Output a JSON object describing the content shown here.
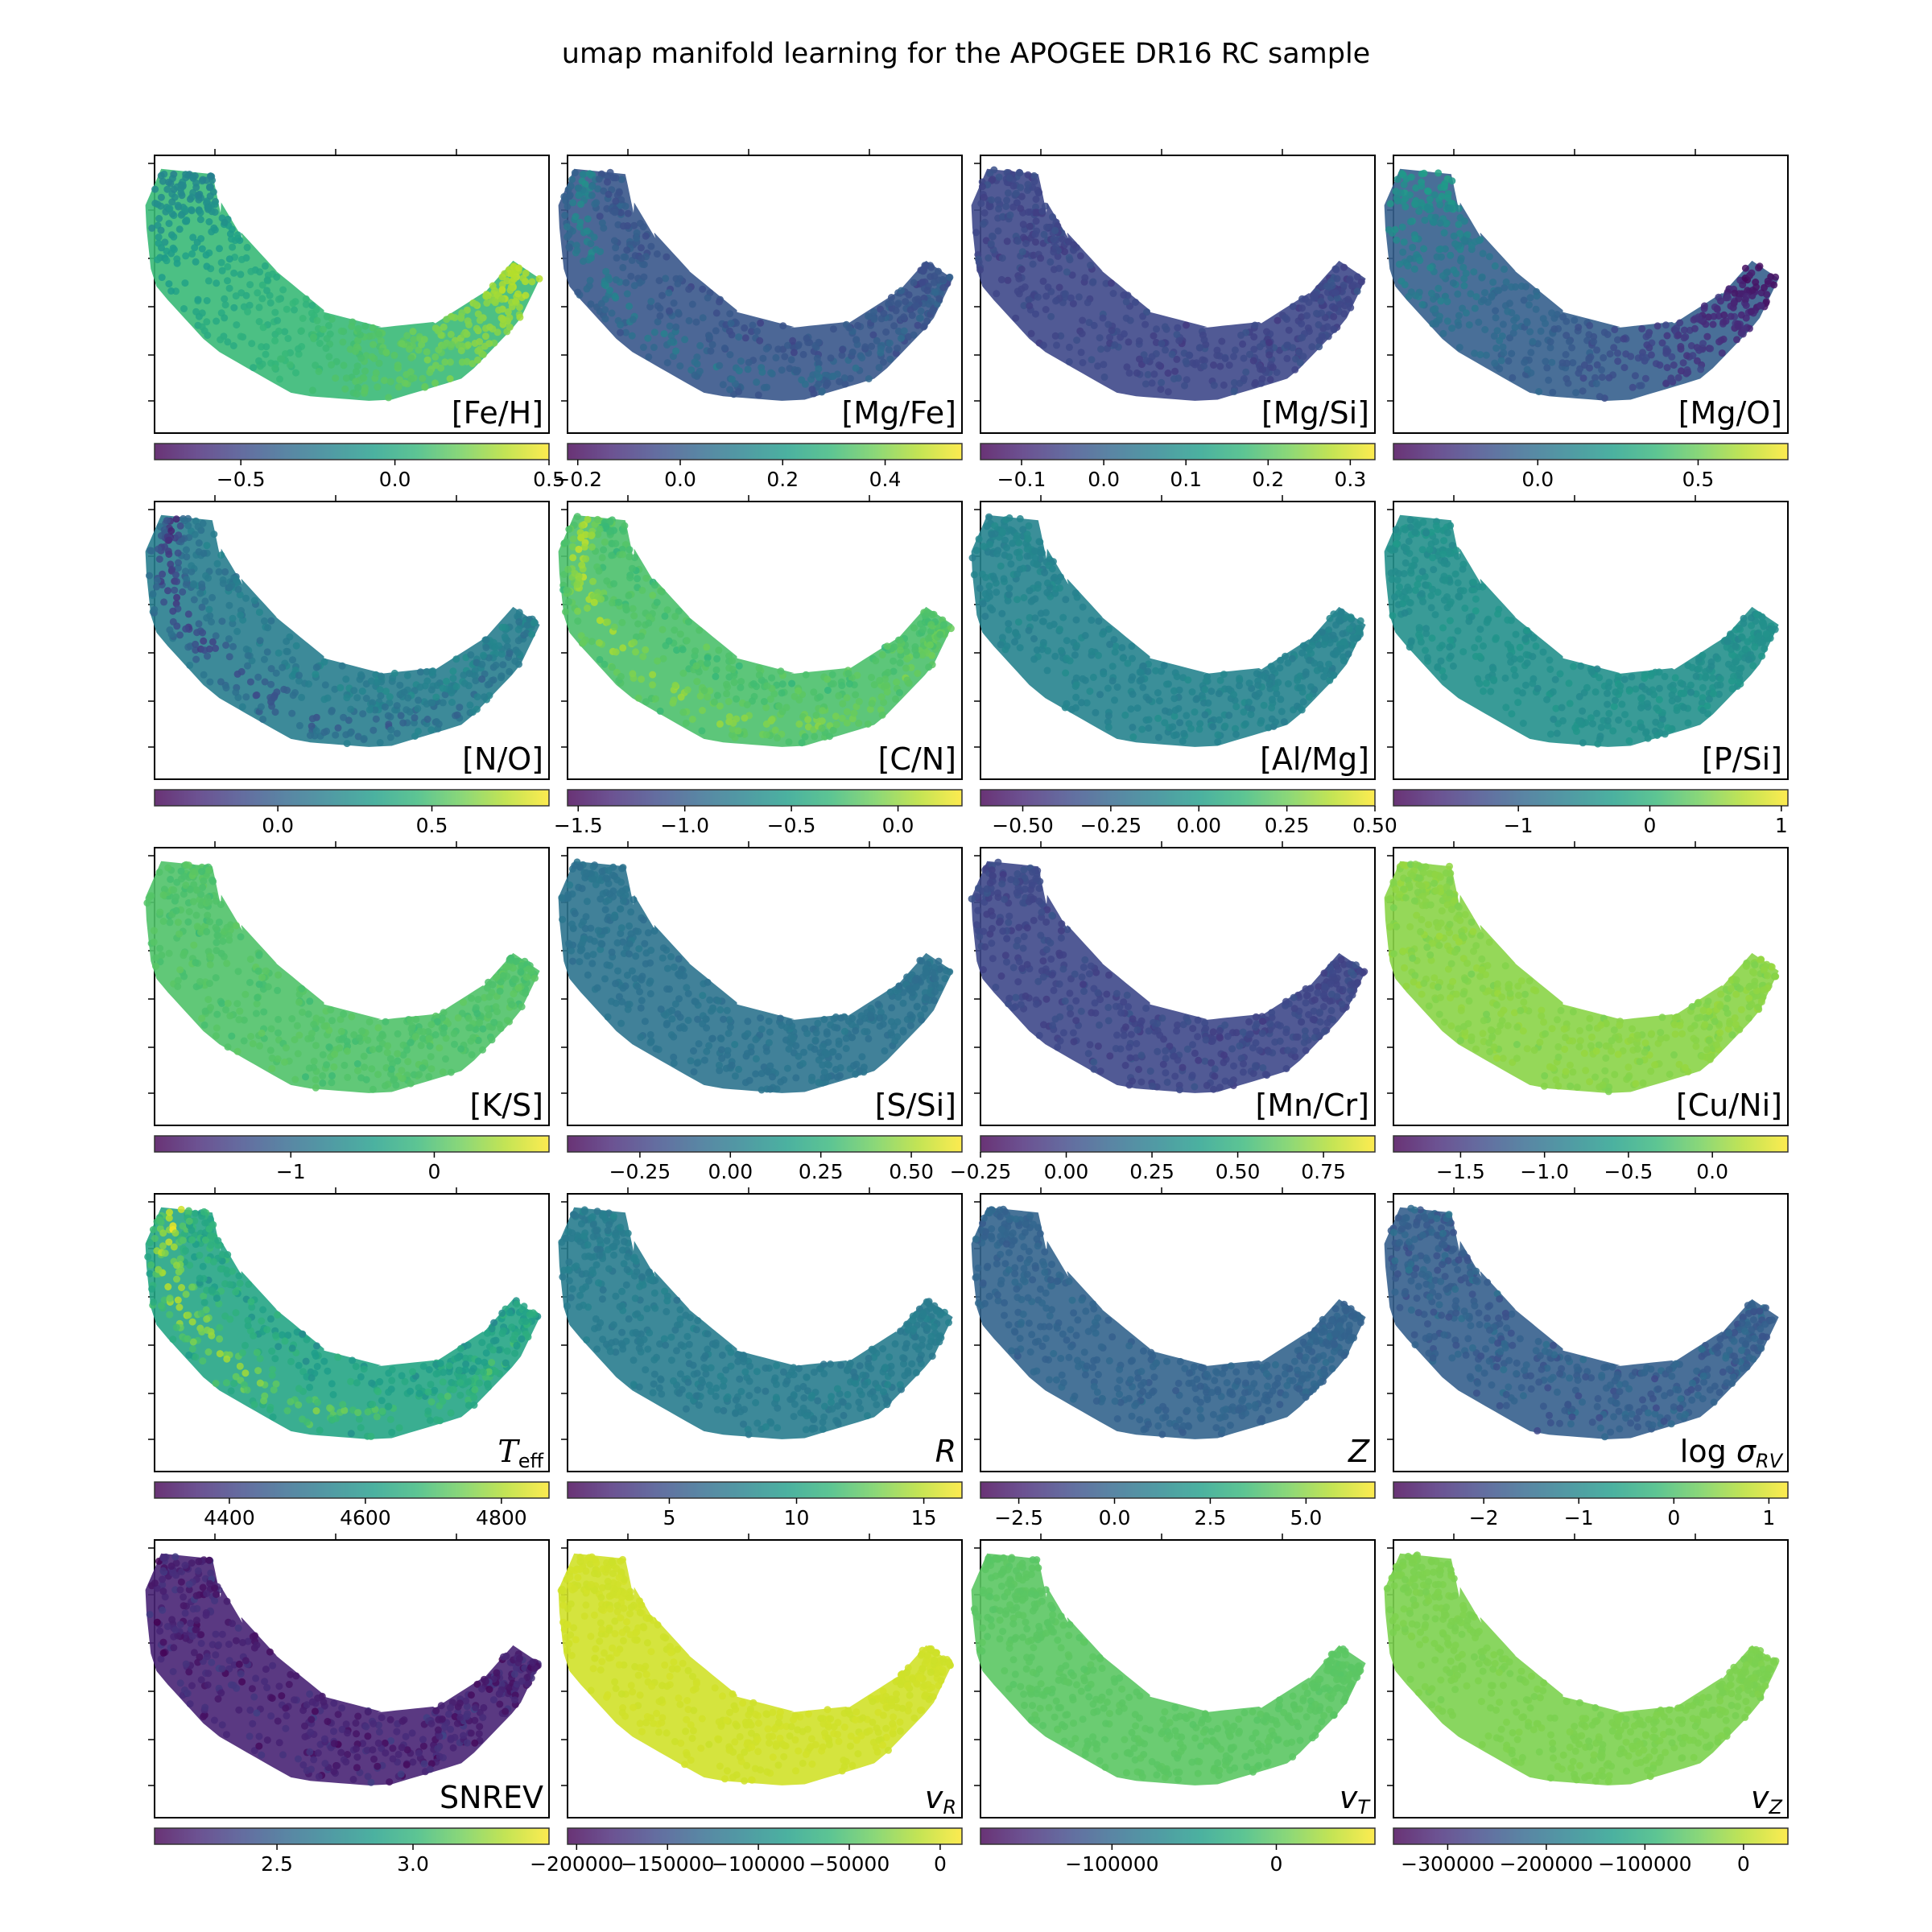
{
  "figure": {
    "title": "umap manifold learning for the APOGEE DR16 RC sample",
    "colormap": "viridis",
    "viridis_stops": [
      "#440154",
      "#482878",
      "#3e4989",
      "#31688e",
      "#26828e",
      "#1f9e89",
      "#35b779",
      "#6ece58",
      "#b5de2b",
      "#fde725"
    ]
  },
  "chart_data": [
    {
      "type": "scatter",
      "label": "[Fe/H]",
      "label_style": "plain",
      "range": [
        -0.78,
        0.5
      ],
      "ticks": [
        -0.5,
        0.0,
        0.5
      ],
      "tick_labels": [
        "−0.5",
        "0.0",
        "0.5"
      ],
      "field": "gradient",
      "c0": 0.45,
      "c1": 0.9,
      "bump": 0,
      "noise": 0.04
    },
    {
      "type": "scatter",
      "label": "[Mg/Fe]",
      "label_style": "plain",
      "range": [
        -0.22,
        0.55
      ],
      "ticks": [
        -0.2,
        0.0,
        0.2,
        0.4
      ],
      "tick_labels": [
        "−0.2",
        "0.0",
        "0.2",
        "0.4"
      ],
      "field": "band",
      "c0": 0.28,
      "c1": 0.26,
      "bump": 0.22,
      "noise": 0.08
    },
    {
      "type": "scatter",
      "label": "[Mg/Si]",
      "label_style": "plain",
      "range": [
        -0.15,
        0.33
      ],
      "ticks": [
        -0.1,
        0.0,
        0.1,
        0.2,
        0.3
      ],
      "tick_labels": [
        "−0.1",
        "0.0",
        "0.1",
        "0.2",
        "0.3"
      ],
      "field": "flat",
      "c0": 0.22,
      "c1": 0.22,
      "bump": 0,
      "noise": 0.07
    },
    {
      "type": "scatter",
      "label": "[Mg/O]",
      "label_style": "plain",
      "range": [
        -0.45,
        0.78
      ],
      "ticks": [
        0.0,
        0.5
      ],
      "tick_labels": [
        "0.0",
        "0.5"
      ],
      "field": "gradient",
      "c0": 0.55,
      "c1": 0.05,
      "bump": 0,
      "noise": 0.06
    },
    {
      "type": "scatter",
      "label": "[N/O]",
      "label_style": "plain",
      "range": [
        -0.4,
        0.88
      ],
      "ticks": [
        0.0,
        0.5
      ],
      "tick_labels": [
        "0.0",
        "0.5"
      ],
      "field": "band",
      "c0": 0.4,
      "c1": 0.45,
      "bump": -0.28,
      "noise": 0.09
    },
    {
      "type": "scatter",
      "label": "[C/N]",
      "label_style": "plain",
      "range": [
        -1.55,
        0.3
      ],
      "ticks": [
        -1.5,
        -1.0,
        -0.5,
        0.0
      ],
      "tick_labels": [
        "−1.5",
        "−1.0",
        "−0.5",
        "0.0"
      ],
      "field": "band",
      "c0": 0.7,
      "c1": 0.72,
      "bump": 0.2,
      "noise": 0.07
    },
    {
      "type": "scatter",
      "label": "[Al/Mg]",
      "label_style": "plain",
      "range": [
        -0.62,
        0.5
      ],
      "ticks": [
        -0.5,
        -0.25,
        0.0,
        0.25,
        0.5
      ],
      "tick_labels": [
        "−0.50",
        "−0.25",
        "0.00",
        "0.25",
        "0.50"
      ],
      "field": "flat",
      "c0": 0.45,
      "c1": 0.45,
      "bump": 0,
      "noise": 0.05
    },
    {
      "type": "scatter",
      "label": "[P/Si]",
      "label_style": "plain",
      "range": [
        -1.95,
        1.05
      ],
      "ticks": [
        -1,
        0,
        1
      ],
      "tick_labels": [
        "−1",
        "0",
        "1"
      ],
      "field": "flat",
      "c0": 0.5,
      "c1": 0.5,
      "bump": 0,
      "noise": 0.05
    },
    {
      "type": "scatter",
      "label": "[K/S]",
      "label_style": "plain",
      "range": [
        -1.95,
        0.8
      ],
      "ticks": [
        -1,
        0
      ],
      "tick_labels": [
        "−1",
        "0"
      ],
      "field": "flat",
      "c0": 0.72,
      "c1": 0.72,
      "bump": 0,
      "noise": 0.05
    },
    {
      "type": "scatter",
      "label": "[S/Si]",
      "label_style": "plain",
      "range": [
        -0.45,
        0.64
      ],
      "ticks": [
        -0.25,
        0.0,
        0.25,
        0.5
      ],
      "tick_labels": [
        "−0.25",
        "0.00",
        "0.25",
        "0.50"
      ],
      "field": "flat",
      "c0": 0.38,
      "c1": 0.38,
      "bump": 0,
      "noise": 0.04
    },
    {
      "type": "scatter",
      "label": "[Mn/Cr]",
      "label_style": "plain",
      "range": [
        -0.25,
        0.9
      ],
      "ticks": [
        -0.25,
        0.0,
        0.25,
        0.5,
        0.75
      ],
      "tick_labels": [
        "−0.25",
        "0.00",
        "0.25",
        "0.50",
        "0.75"
      ],
      "field": "flat",
      "c0": 0.22,
      "c1": 0.22,
      "bump": 0,
      "noise": 0.06
    },
    {
      "type": "scatter",
      "label": "[Cu/Ni]",
      "label_style": "plain",
      "range": [
        -1.9,
        0.45
      ],
      "ticks": [
        -1.5,
        -1.0,
        -0.5,
        0.0
      ],
      "tick_labels": [
        "−1.5",
        "−1.0",
        "−0.5",
        "0.0"
      ],
      "field": "flat",
      "c0": 0.82,
      "c1": 0.82,
      "bump": 0,
      "noise": 0.04
    },
    {
      "type": "scatter",
      "label": "Teff",
      "label_style": "teff",
      "range": [
        4290,
        4870
      ],
      "ticks": [
        4400,
        4600,
        4800
      ],
      "tick_labels": [
        "4400",
        "4600",
        "4800"
      ],
      "field": "band",
      "c0": 0.62,
      "c1": 0.55,
      "bump": 0.33,
      "noise": 0.14
    },
    {
      "type": "scatter",
      "label": "R",
      "label_style": "italic",
      "range": [
        1.0,
        16.5
      ],
      "ticks": [
        5,
        10,
        15
      ],
      "tick_labels": [
        "5",
        "10",
        "15"
      ],
      "field": "flat",
      "c0": 0.42,
      "c1": 0.42,
      "bump": 0,
      "noise": 0.05
    },
    {
      "type": "scatter",
      "label": "Z",
      "label_style": "italic",
      "range": [
        -3.5,
        6.8
      ],
      "ticks": [
        -2.5,
        0.0,
        2.5,
        5.0
      ],
      "tick_labels": [
        "−2.5",
        "0.0",
        "2.5",
        "5.0"
      ],
      "field": "flat",
      "c0": 0.32,
      "c1": 0.32,
      "bump": 0,
      "noise": 0.04
    },
    {
      "type": "scatter",
      "label": "log σRV",
      "label_style": "logsigma",
      "range": [
        -2.95,
        1.2
      ],
      "ticks": [
        -2,
        -1,
        0,
        1
      ],
      "tick_labels": [
        "−2",
        "−1",
        "0",
        "1"
      ],
      "field": "flat",
      "c0": 0.3,
      "c1": 0.3,
      "bump": 0,
      "noise": 0.1
    },
    {
      "type": "scatter",
      "label": "SNREV",
      "label_style": "plain",
      "range": [
        2.05,
        3.5
      ],
      "ticks": [
        2.5,
        3.0
      ],
      "tick_labels": [
        "2.5",
        "3.0"
      ],
      "field": "flat",
      "c0": 0.1,
      "c1": 0.1,
      "bump": 0,
      "noise": 0.12
    },
    {
      "type": "scatter",
      "label": "vR",
      "label_style": "vsub",
      "sub": "R",
      "range": [
        -205000,
        12000
      ],
      "ticks": [
        -200000,
        -150000,
        -100000,
        -50000,
        0
      ],
      "tick_labels": [
        "−200000",
        "−150000",
        "−100000",
        "−50000",
        "0"
      ],
      "field": "flat",
      "c0": 0.93,
      "c1": 0.93,
      "bump": 0,
      "noise": 0.01
    },
    {
      "type": "scatter",
      "label": "vT",
      "label_style": "vsub",
      "sub": "T",
      "range": [
        -180000,
        60000
      ],
      "ticks": [
        -100000,
        0
      ],
      "tick_labels": [
        "−100000",
        "0"
      ],
      "field": "flat",
      "c0": 0.74,
      "c1": 0.74,
      "bump": 0,
      "noise": 0.01
    },
    {
      "type": "scatter",
      "label": "vZ",
      "label_style": "vsub",
      "sub": "Z",
      "range": [
        -355000,
        45000
      ],
      "ticks": [
        -300000,
        -200000,
        -100000,
        0
      ],
      "tick_labels": [
        "−300000",
        "−200000",
        "−100000",
        "0"
      ],
      "field": "flat",
      "c0": 0.8,
      "c1": 0.8,
      "bump": 0,
      "noise": 0.01
    }
  ]
}
